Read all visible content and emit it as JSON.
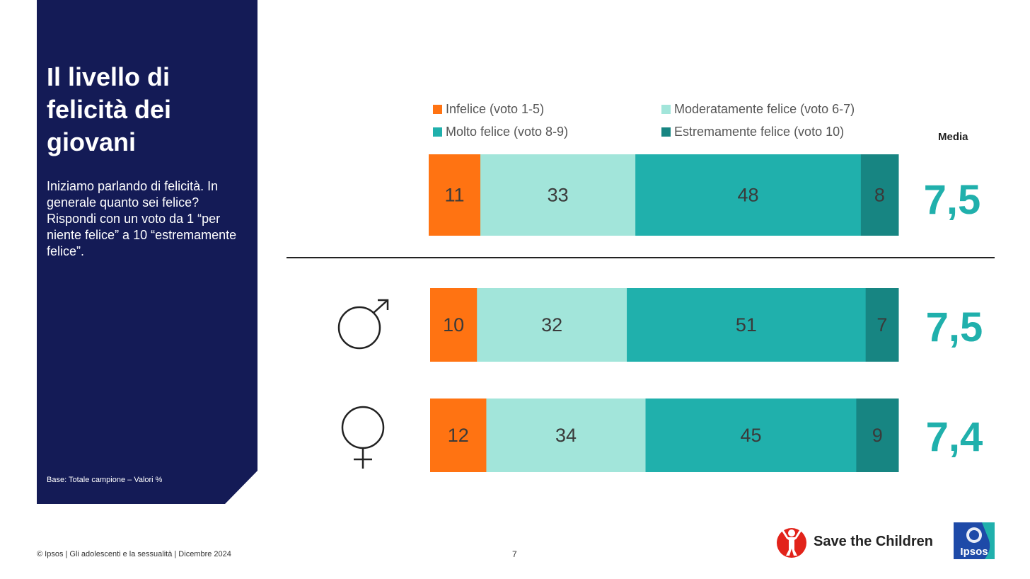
{
  "panel": {
    "title": "Il livello di felicità dei giovani",
    "question": "Iniziamo parlando di felicità. In generale quanto sei felice? Rispondi con un voto da 1 “per niente felice” a 10 “estremamente felice”.",
    "base": "Base: Totale campione – Valori %"
  },
  "colors": {
    "panel_bg": "#141b56",
    "infelice": "#ff7312",
    "moderatamente": "#a2e5da",
    "molto": "#20b0ac",
    "estremamente": "#178582",
    "media_value": "#20b0ac"
  },
  "media_label": "Media",
  "chart_data": {
    "type": "bar",
    "orientation": "horizontal",
    "stacked": true,
    "unit": "%",
    "legend": [
      {
        "key": "infelice",
        "label": "Infelice (voto 1-5)",
        "color": "#ff7312"
      },
      {
        "key": "moderatamente",
        "label": "Moderatamente felice (voto 6-7)",
        "color": "#a2e5da"
      },
      {
        "key": "molto",
        "label": "Molto felice (voto 8-9)",
        "color": "#20b0ac"
      },
      {
        "key": "estremamente",
        "label": "Estremamente felice (voto 10)",
        "color": "#178582"
      }
    ],
    "rows": [
      {
        "icon": "",
        "values": [
          11,
          33,
          48,
          8
        ],
        "media": "7,5"
      },
      {
        "icon": "male-symbol-icon",
        "values": [
          10,
          32,
          51,
          7
        ],
        "media": "7,5"
      },
      {
        "icon": "female-symbol-icon",
        "values": [
          12,
          34,
          45,
          9
        ],
        "media": "7,4"
      }
    ]
  },
  "footer": {
    "copyright": "© Ipsos | Gli adolescenti e la sessualità | Dicembre 2024",
    "page": "7",
    "stc_logo_text": "Save the Children",
    "ipsos_logo_text": "Ipsos"
  }
}
